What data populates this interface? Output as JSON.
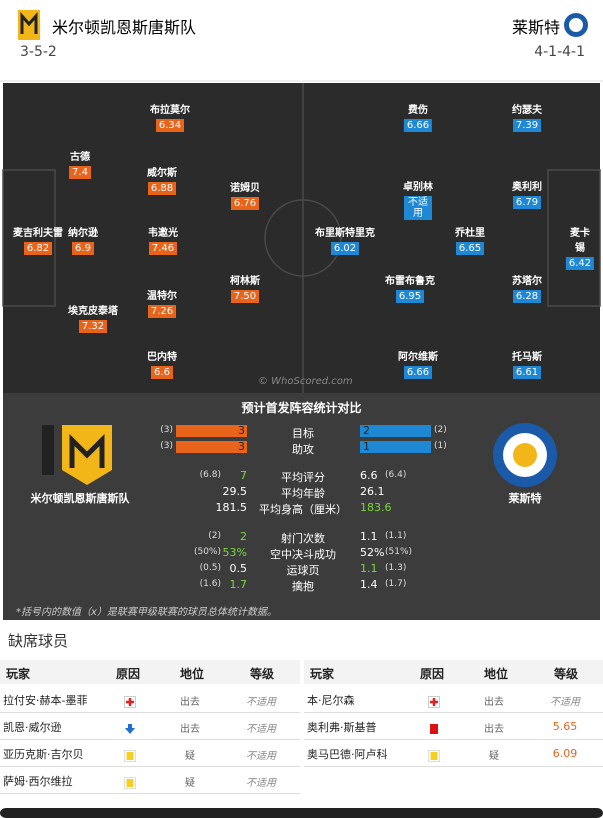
{
  "header": {
    "home_team": "米尔顿凯恩斯唐斯队",
    "home_formation": "3-5-2",
    "away_team": "莱斯特",
    "away_formation": "4-1-4-1"
  },
  "pitch": {
    "home_players": [
      {
        "name": "布拉莫尔",
        "rating": "6.34"
      },
      {
        "name": "古德",
        "rating": "7.4"
      },
      {
        "name": "威尔斯",
        "rating": "6.88"
      },
      {
        "name": "诺姆贝",
        "rating": "6.76"
      },
      {
        "name": "麦吉利夫雷",
        "rating": "6.82"
      },
      {
        "name": "纳尔逊",
        "rating": "6.9"
      },
      {
        "name": "韦邀光",
        "rating": "7.46"
      },
      {
        "name": "柯林斯",
        "rating": "7.50"
      },
      {
        "name": "埃克皮泰塔",
        "rating": "7.32"
      },
      {
        "name": "温特尔",
        "rating": "7.26"
      },
      {
        "name": "巴内特",
        "rating": "6.6"
      }
    ],
    "away_players": [
      {
        "name": "费伤",
        "rating": "6.66"
      },
      {
        "name": "约瑟夫",
        "rating": "7.39"
      },
      {
        "name": "卓别林",
        "rating": "不适用"
      },
      {
        "name": "奥利利",
        "rating": "6.79"
      },
      {
        "name": "布里斯特里克",
        "rating": "6.02"
      },
      {
        "name": "乔杜里",
        "rating": "6.65"
      },
      {
        "name": "麦卡锡",
        "rating": "6.42"
      },
      {
        "name": "布雷布鲁克",
        "rating": "6.95"
      },
      {
        "name": "苏塔尔",
        "rating": "6.28"
      },
      {
        "name": "阿尔维斯",
        "rating": "6.66"
      },
      {
        "name": "托马斯",
        "rating": "6.61"
      }
    ],
    "watermark": "© WhoScored.com"
  },
  "comparison": {
    "title": "预计首发阵容统计对比",
    "home_team": "米尔顿凯恩斯唐斯队",
    "away_team": "莱斯特",
    "rows": [
      {
        "label": "目标",
        "home": "3",
        "home_avg": "(3)",
        "away": "2",
        "away_avg": "(2)"
      },
      {
        "label": "助攻",
        "home": "3",
        "home_avg": "(3)",
        "away": "1",
        "away_avg": "(1)"
      },
      {
        "label": "平均评分",
        "home": "7",
        "home_avg": "(6.8)",
        "away": "6.6",
        "away_avg": "(6.4)"
      },
      {
        "label": "平均年龄",
        "home": "29.5",
        "away": "26.1"
      },
      {
        "label": "平均身高（厘米）",
        "home": "181.5",
        "away": "183.6"
      },
      {
        "label": "射门次数",
        "home": "2",
        "home_avg": "(2)",
        "away": "1.1",
        "away_avg": "(1.1)"
      },
      {
        "label": "空中决斗成功",
        "home": "53%",
        "home_avg": "(50%)",
        "away": "52%",
        "away_avg": "(51%)"
      },
      {
        "label": "运球页",
        "home": "0.5",
        "home_avg": "(0.5)",
        "away": "1.1",
        "away_avg": "(1.3)"
      },
      {
        "label": "擒抱",
        "home": "1.7",
        "home_avg": "(1.6)",
        "away": "1.4",
        "away_avg": "(1.7)"
      }
    ],
    "note": "*括号内的数值（x）是联赛甲级联赛的球员总体统计数据。"
  },
  "missing": {
    "title": "缺席球员",
    "headers": [
      "玩家",
      "原因",
      "地位",
      "等级"
    ],
    "home_rows": [
      [
        "拉付安·赫本-墨菲",
        "出去",
        "不适用"
      ],
      [
        "凯恩·威尔逊",
        "出去",
        "不适用"
      ],
      [
        "亚历克斯·吉尔贝",
        "疑",
        "不适用"
      ],
      [
        "萨姆·西尔维拉",
        "疑",
        "不适用"
      ]
    ],
    "away_rows": [
      [
        "本·尼尔森",
        "出去",
        "不适用"
      ],
      [
        "奥利弗·斯基普",
        "出去",
        "5.65"
      ],
      [
        "奥马巴德·阿卢科",
        "疑",
        "6.09"
      ]
    ]
  }
}
